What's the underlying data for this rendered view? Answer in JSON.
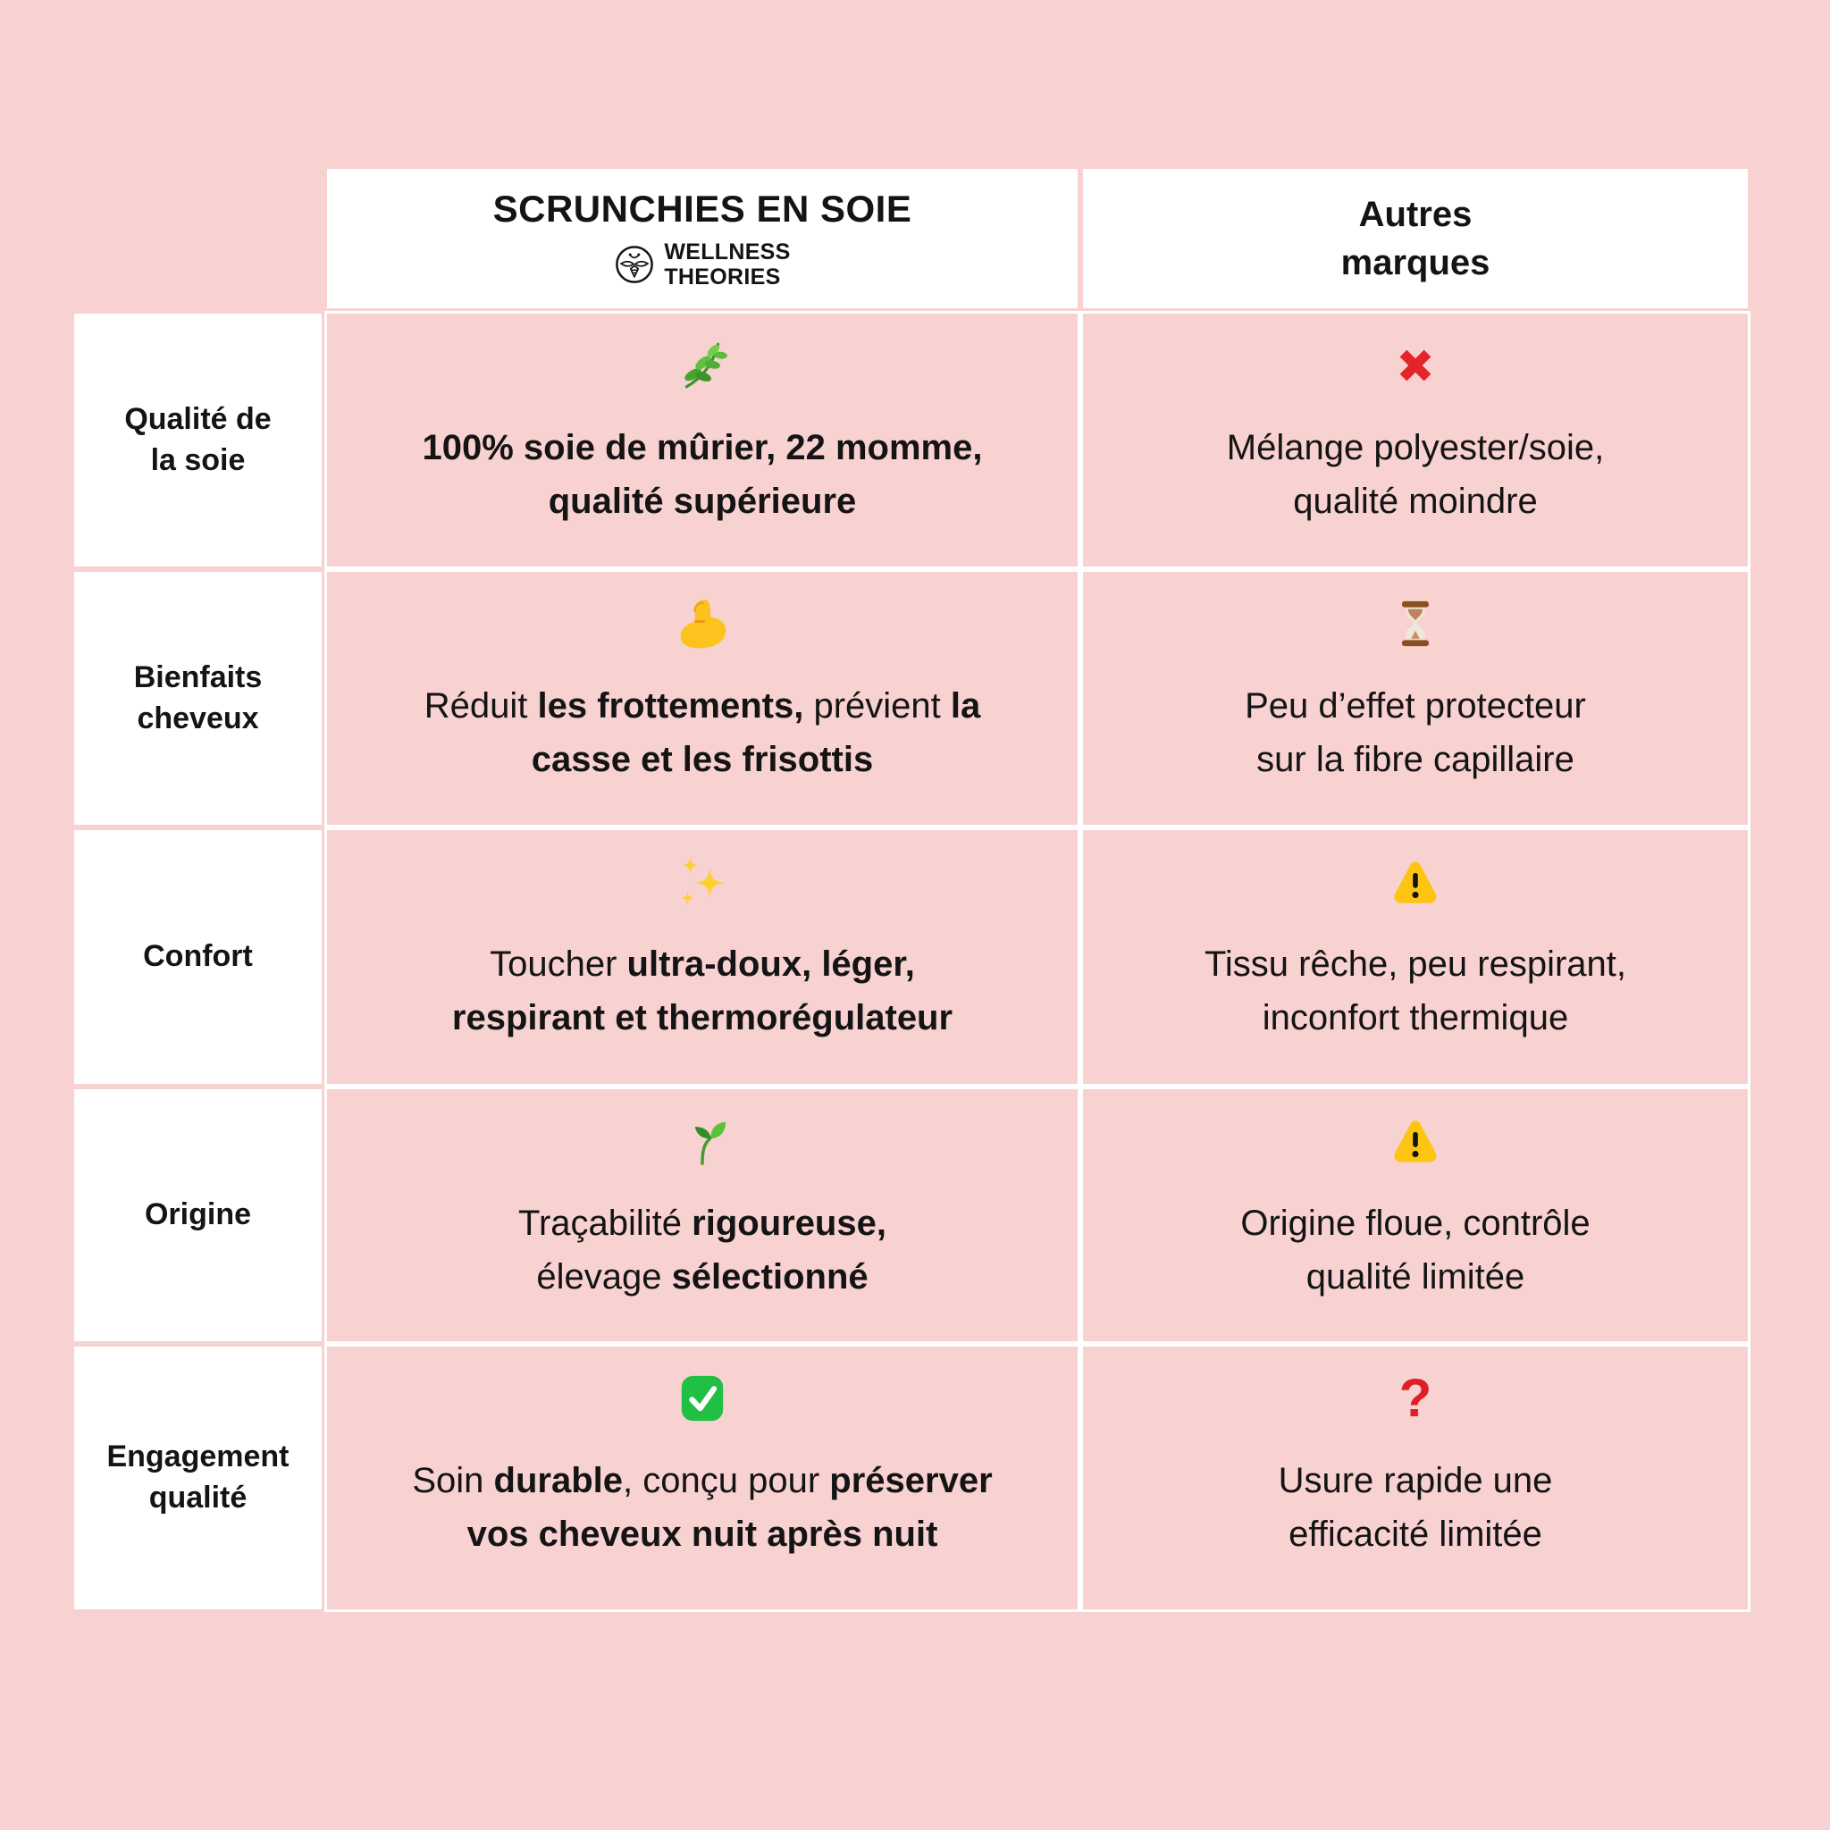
{
  "page": {
    "background_color": "#f8d1d1",
    "card_color": "#ffffff",
    "text_color": "#141414"
  },
  "colors": {
    "cross_red": "#e3242b",
    "question_red": "#e01e25",
    "warning_yellow": "#fdc512",
    "check_green": "#1fc043",
    "herb_green": "#5fc13f",
    "seedling_green": "#58c23d",
    "biceps_yellow": "#fcc21d",
    "hourglass_brown": "#8a4f21",
    "sparkles_yellow": "#fdd02c"
  },
  "table": {
    "header": {
      "brand_column": {
        "title": "SCRUNCHIES EN SOIE",
        "logo_icon": "bee-logo",
        "logo_text": "WELLNESS\nTHEORIES"
      },
      "others_column": {
        "title": "Autres\nmarques"
      }
    },
    "rows": [
      {
        "label": "Qualité de\nla soie",
        "brand": {
          "icon": "herb",
          "segments": [
            {
              "b": 1,
              "t": "100% soie de mûrier, 22 momme,\nqualité supérieure"
            }
          ]
        },
        "others": {
          "icon": "cross-mark",
          "segments": [
            {
              "b": 0,
              "t": "Mélange polyester/soie,\nqualité moindre"
            }
          ]
        }
      },
      {
        "label": "Bienfaits\ncheveux",
        "brand": {
          "icon": "flexed-biceps",
          "segments": [
            {
              "b": 0,
              "t": "Réduit "
            },
            {
              "b": 1,
              "t": "les frottements,"
            },
            {
              "b": 0,
              "t": " prévient "
            },
            {
              "b": 1,
              "t": "la\ncasse et les frisottis"
            }
          ]
        },
        "others": {
          "icon": "hourglass",
          "segments": [
            {
              "b": 0,
              "t": "Peu d’effet protecteur\nsur la fibre capillaire"
            }
          ]
        }
      },
      {
        "label": "Confort",
        "brand": {
          "icon": "sparkles",
          "segments": [
            {
              "b": 0,
              "t": "Toucher "
            },
            {
              "b": 1,
              "t": "ultra-doux, léger,\nrespirant et thermorégulateur"
            }
          ]
        },
        "others": {
          "icon": "warning",
          "segments": [
            {
              "b": 0,
              "t": "Tissu rêche, peu respirant,\ninconfort thermique"
            }
          ]
        }
      },
      {
        "label": "Origine",
        "brand": {
          "icon": "seedling",
          "segments": [
            {
              "b": 0,
              "t": "Traçabilité "
            },
            {
              "b": 1,
              "t": "rigoureuse,"
            },
            {
              "b": 0,
              "t": "\nélevage "
            },
            {
              "b": 1,
              "t": "sélectionné"
            }
          ]
        },
        "others": {
          "icon": "warning",
          "segments": [
            {
              "b": 0,
              "t": "Origine floue, contrôle\nqualité limitée"
            }
          ]
        }
      },
      {
        "label": "Engagement\nqualité",
        "brand": {
          "icon": "check-mark",
          "segments": [
            {
              "b": 0,
              "t": "Soin "
            },
            {
              "b": 1,
              "t": "durable"
            },
            {
              "b": 0,
              "t": ", conçu pour "
            },
            {
              "b": 1,
              "t": "préserver\nvos cheveux nuit après nuit"
            }
          ]
        },
        "others": {
          "icon": "question-mark",
          "icon_glyph": "?",
          "segments": [
            {
              "b": 0,
              "t": "Usure rapide une\nefficacité limitée"
            }
          ]
        }
      }
    ]
  }
}
